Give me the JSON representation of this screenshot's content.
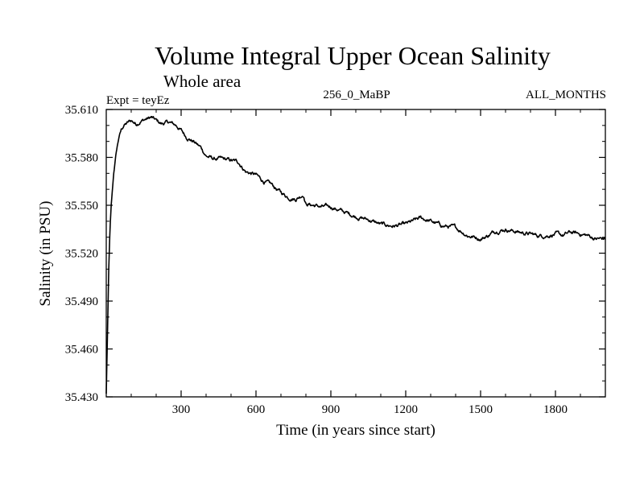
{
  "chart_data": {
    "type": "line",
    "title": "Volume Integral Upper Ocean Salinity",
    "subtitle": "Whole area",
    "experiment_label": "Expt = teyEz",
    "center_label": "256_0_MaBP",
    "right_label": "ALL_MONTHS",
    "xlabel": "Time (in years since start)",
    "ylabel": "Salinity (in PSU)",
    "xlim": [
      0,
      2000
    ],
    "ylim": [
      35.43,
      35.61
    ],
    "x_ticks": [
      300,
      600,
      900,
      1200,
      1500,
      1800
    ],
    "x_tick_labels": [
      "300",
      "600",
      "900",
      "1200",
      "1500",
      "1800"
    ],
    "y_ticks": [
      35.43,
      35.46,
      35.49,
      35.52,
      35.55,
      35.58,
      35.61
    ],
    "y_tick_labels": [
      "35.430",
      "35.460",
      "35.490",
      "35.520",
      "35.550",
      "35.580",
      "35.610"
    ],
    "grid": false,
    "series": [
      {
        "name": "Salinity",
        "x": [
          0,
          5,
          10,
          15,
          20,
          30,
          40,
          50,
          60,
          70,
          80,
          100,
          120,
          140,
          160,
          180,
          200,
          220,
          250,
          280,
          300,
          320,
          350,
          380,
          400,
          430,
          460,
          500,
          530,
          560,
          600,
          630,
          660,
          700,
          730,
          760,
          790,
          800,
          830,
          860,
          900,
          950,
          1000,
          1050,
          1100,
          1150,
          1200,
          1230,
          1260,
          1300,
          1350,
          1400,
          1450,
          1480,
          1500,
          1530,
          1560,
          1600,
          1630,
          1660,
          1700,
          1730,
          1760,
          1800,
          1830,
          1860,
          1900,
          1930,
          1960,
          2000
        ],
        "values": [
          35.432,
          35.47,
          35.51,
          35.535,
          35.55,
          35.57,
          35.583,
          35.592,
          35.597,
          35.6,
          35.601,
          35.603,
          35.601,
          35.603,
          35.604,
          35.605,
          35.603,
          35.601,
          35.602,
          35.6,
          35.597,
          35.593,
          35.59,
          35.586,
          35.581,
          35.579,
          35.579,
          35.578,
          35.577,
          35.571,
          35.569,
          35.565,
          35.563,
          35.558,
          35.555,
          35.554,
          35.557,
          35.551,
          35.55,
          35.549,
          35.549,
          35.546,
          35.543,
          35.541,
          35.538,
          35.537,
          35.538,
          35.54,
          35.542,
          35.54,
          35.537,
          35.536,
          35.531,
          35.53,
          35.529,
          35.531,
          35.534,
          35.535,
          35.534,
          35.533,
          35.532,
          35.531,
          35.531,
          35.532,
          35.531,
          35.533,
          35.532,
          35.531,
          35.529,
          35.529
        ]
      }
    ]
  }
}
